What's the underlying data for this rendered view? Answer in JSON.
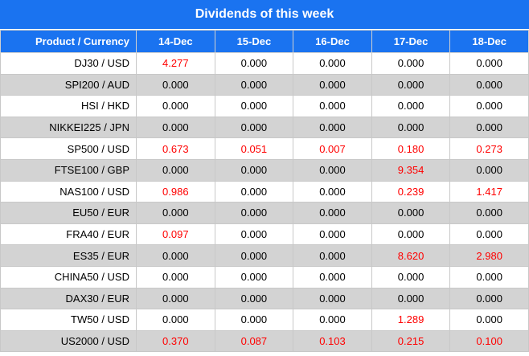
{
  "title": "Dividends of this week",
  "headers": [
    "Product / Currency",
    "14-Dec",
    "15-Dec",
    "16-Dec",
    "17-Dec",
    "18-Dec"
  ],
  "colors": {
    "header_bg": "#1a73f0",
    "header_text": "#ffffff",
    "highlight": "#ff0000",
    "stripe": "#d3d3d3"
  },
  "rows": [
    {
      "product": "DJ30 / USD",
      "values": [
        "4.277",
        "0.000",
        "0.000",
        "0.000",
        "0.000"
      ],
      "highlight": [
        true,
        false,
        false,
        false,
        false
      ]
    },
    {
      "product": "SPI200 / AUD",
      "values": [
        "0.000",
        "0.000",
        "0.000",
        "0.000",
        "0.000"
      ],
      "highlight": [
        false,
        false,
        false,
        false,
        false
      ]
    },
    {
      "product": "HSI / HKD",
      "values": [
        "0.000",
        "0.000",
        "0.000",
        "0.000",
        "0.000"
      ],
      "highlight": [
        false,
        false,
        false,
        false,
        false
      ]
    },
    {
      "product": "NIKKEI225 / JPN",
      "values": [
        "0.000",
        "0.000",
        "0.000",
        "0.000",
        "0.000"
      ],
      "highlight": [
        false,
        false,
        false,
        false,
        false
      ]
    },
    {
      "product": "SP500 / USD",
      "values": [
        "0.673",
        "0.051",
        "0.007",
        "0.180",
        "0.273"
      ],
      "highlight": [
        true,
        true,
        true,
        true,
        true
      ]
    },
    {
      "product": "FTSE100 / GBP",
      "values": [
        "0.000",
        "0.000",
        "0.000",
        "9.354",
        "0.000"
      ],
      "highlight": [
        false,
        false,
        false,
        true,
        false
      ]
    },
    {
      "product": "NAS100 / USD",
      "values": [
        "0.986",
        "0.000",
        "0.000",
        "0.239",
        "1.417"
      ],
      "highlight": [
        true,
        false,
        false,
        true,
        true
      ]
    },
    {
      "product": "EU50 / EUR",
      "values": [
        "0.000",
        "0.000",
        "0.000",
        "0.000",
        "0.000"
      ],
      "highlight": [
        false,
        false,
        false,
        false,
        false
      ]
    },
    {
      "product": "FRA40 / EUR",
      "values": [
        "0.097",
        "0.000",
        "0.000",
        "0.000",
        "0.000"
      ],
      "highlight": [
        true,
        false,
        false,
        false,
        false
      ]
    },
    {
      "product": "ES35 / EUR",
      "values": [
        "0.000",
        "0.000",
        "0.000",
        "8.620",
        "2.980"
      ],
      "highlight": [
        false,
        false,
        false,
        true,
        true
      ]
    },
    {
      "product": "CHINA50 / USD",
      "values": [
        "0.000",
        "0.000",
        "0.000",
        "0.000",
        "0.000"
      ],
      "highlight": [
        false,
        false,
        false,
        false,
        false
      ]
    },
    {
      "product": "DAX30 / EUR",
      "values": [
        "0.000",
        "0.000",
        "0.000",
        "0.000",
        "0.000"
      ],
      "highlight": [
        false,
        false,
        false,
        false,
        false
      ]
    },
    {
      "product": "TW50 / USD",
      "values": [
        "0.000",
        "0.000",
        "0.000",
        "1.289",
        "0.000"
      ],
      "highlight": [
        false,
        false,
        false,
        true,
        false
      ]
    },
    {
      "product": "US2000 / USD",
      "values": [
        "0.370",
        "0.087",
        "0.103",
        "0.215",
        "0.100"
      ],
      "highlight": [
        true,
        true,
        true,
        true,
        true
      ]
    }
  ]
}
